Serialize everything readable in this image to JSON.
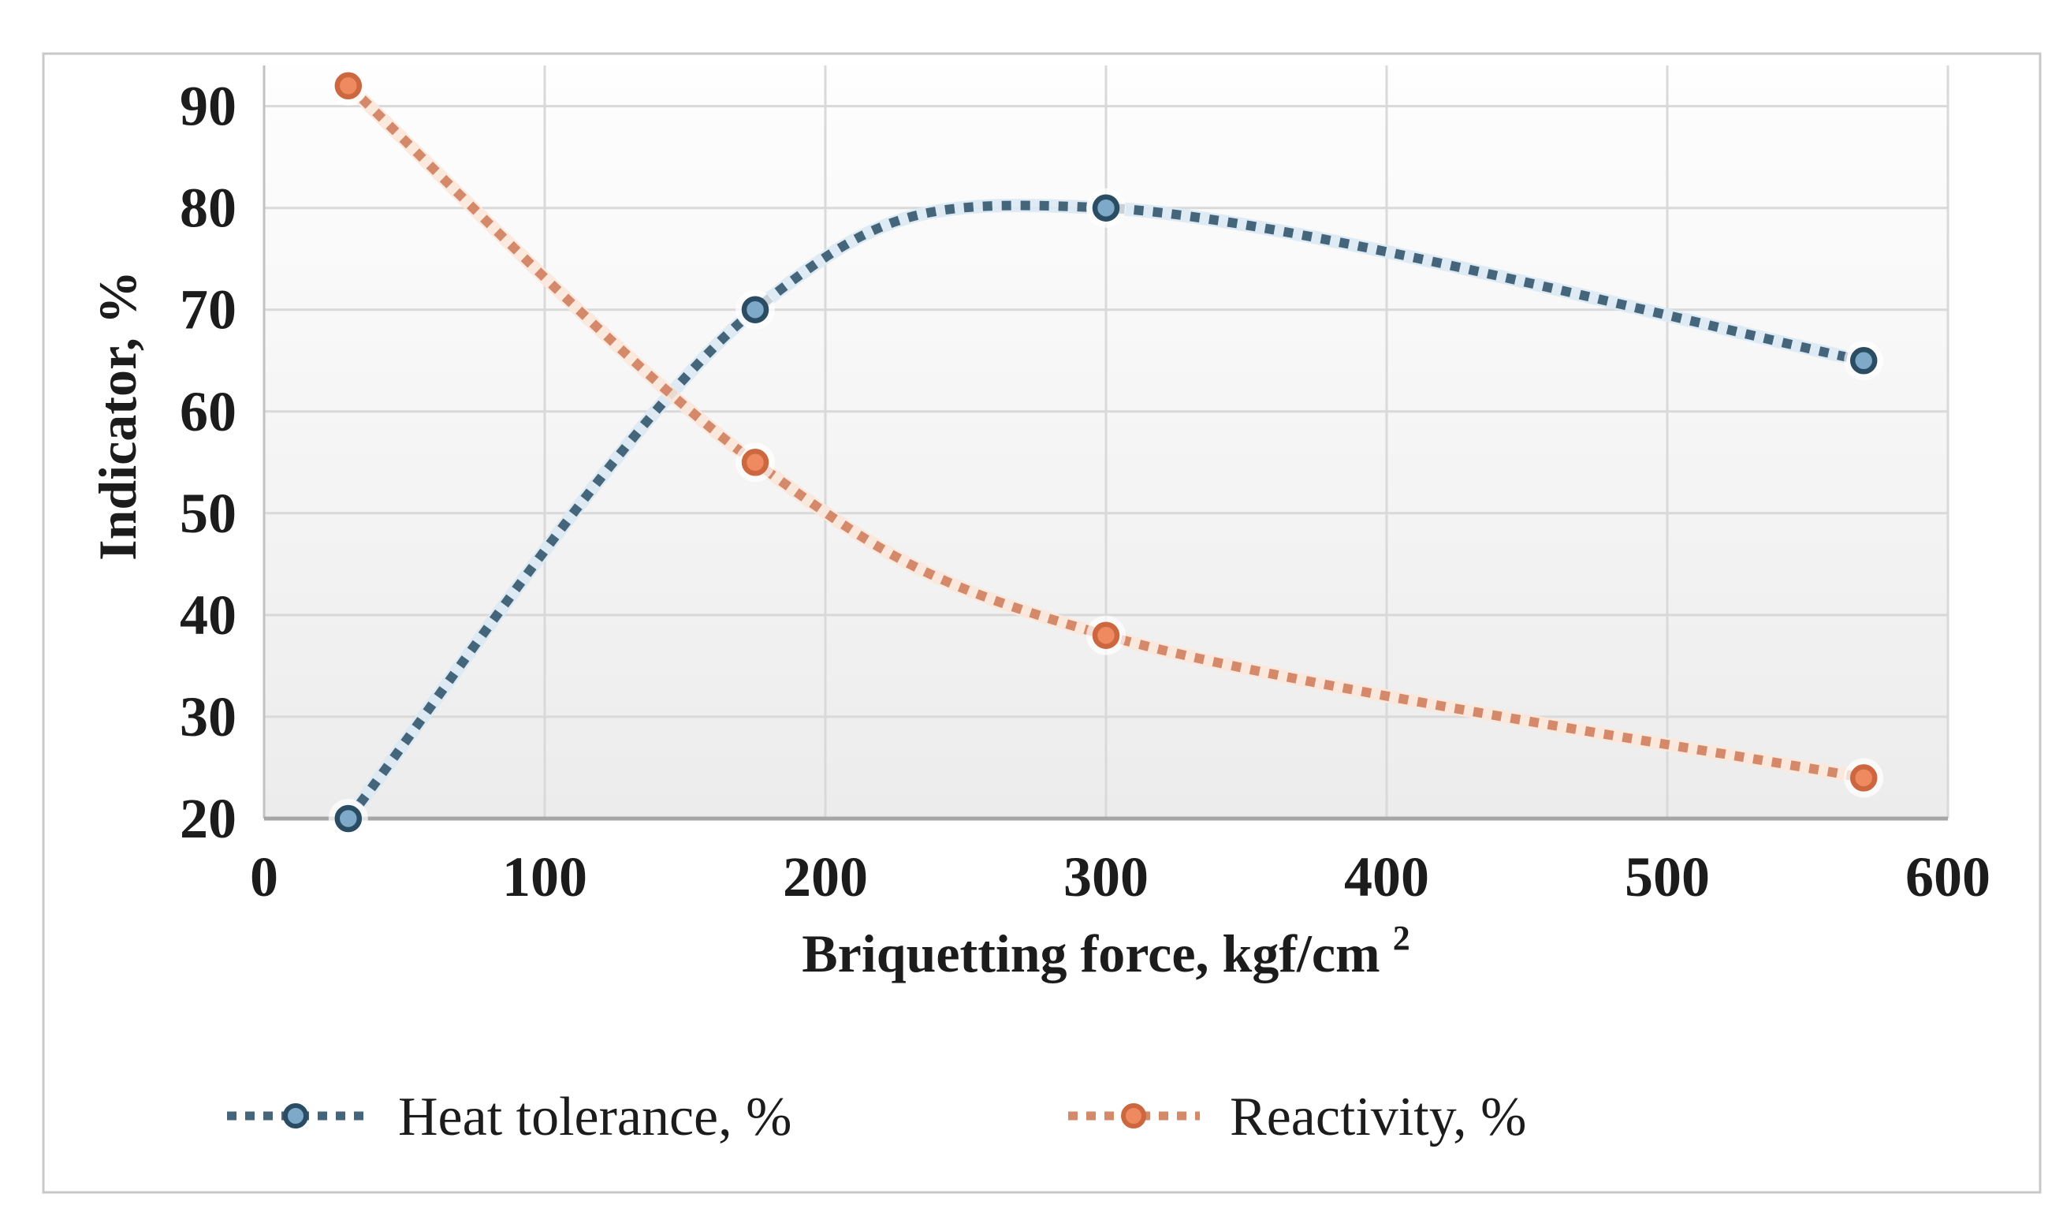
{
  "figure": {
    "background_color": "#ffffff",
    "border_color": "#c8c8c8"
  },
  "chart_data": {
    "type": "line",
    "line_style": "dotted",
    "smooth": true,
    "title": "",
    "xlabel": "Briquetting force, kgf/cm",
    "xlabel_superscript": "2",
    "ylabel": "Indicator, %",
    "xlim": [
      0,
      600
    ],
    "ylim": [
      20,
      94
    ],
    "x_ticks": [
      0,
      100,
      200,
      300,
      400,
      500,
      600
    ],
    "y_ticks": [
      20,
      30,
      40,
      50,
      60,
      70,
      80,
      90
    ],
    "grid": true,
    "grid_color": "#d9d9d9",
    "axis_line_color": "#a6a6a6",
    "y_axis_line_color": "#c2c2c2",
    "text_color": "#1c1c1c",
    "plot_bg_top": "#fefefe",
    "plot_bg_bottom": "#ececec",
    "legend_position": "bottom",
    "x": [
      30,
      175,
      300,
      570
    ],
    "series": [
      {
        "name": "Heat tolerance, %",
        "values": [
          20,
          70,
          80,
          65
        ],
        "line_color": "#44657a",
        "halo_color": "#dce9f3",
        "marker_fill": "#7ea9c8",
        "marker_stroke": "#2b4d63"
      },
      {
        "name": "Reactivity, %",
        "values": [
          92,
          55,
          38,
          24
        ],
        "line_color": "#d4896b",
        "halo_color": "#fbe7da",
        "marker_fill": "#ee8960",
        "marker_stroke": "#cc6740"
      }
    ]
  }
}
